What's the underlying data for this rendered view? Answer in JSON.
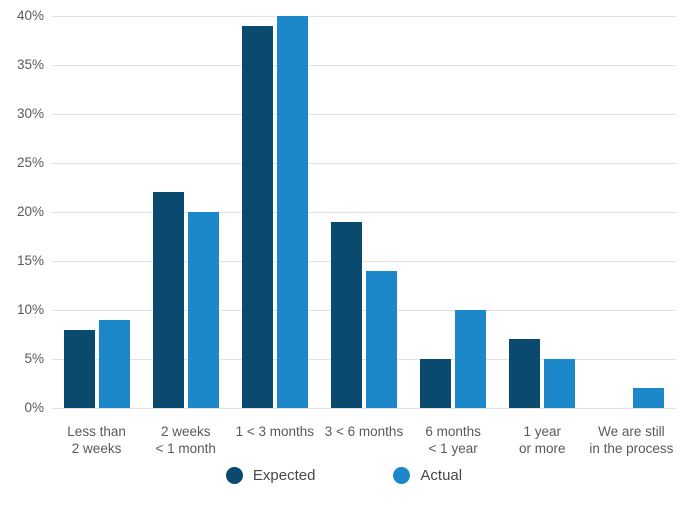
{
  "chart_data": {
    "type": "bar",
    "title": "",
    "xlabel": "",
    "ylabel": "",
    "categories": [
      "Less than\n2 weeks",
      "2 weeks\n< 1 month",
      "1 < 3 months",
      "3 < 6 months",
      "6 months\n< 1 year",
      "1 year\nor more",
      "We are still\nin the process"
    ],
    "series": [
      {
        "name": "Expected",
        "color": "#0a4a6e",
        "values": [
          8,
          22,
          39,
          19,
          5,
          7,
          0
        ]
      },
      {
        "name": "Actual",
        "color": "#1c87c9",
        "values": [
          9,
          20,
          40,
          14,
          10,
          5,
          2
        ]
      }
    ],
    "ylim": [
      0,
      40
    ],
    "ytick_step": 5,
    "yticks": [
      "0%",
      "5%",
      "10%",
      "15%",
      "20%",
      "25%",
      "30%",
      "35%",
      "40%"
    ],
    "grid": true,
    "legend_position": "bottom"
  },
  "colors": {
    "background": "#ffffff",
    "gridline": "#e1e1e1",
    "axis_text": "#595959",
    "legend_text": "#474747",
    "expected": "#0a4a6e",
    "actual": "#1c87c9"
  }
}
